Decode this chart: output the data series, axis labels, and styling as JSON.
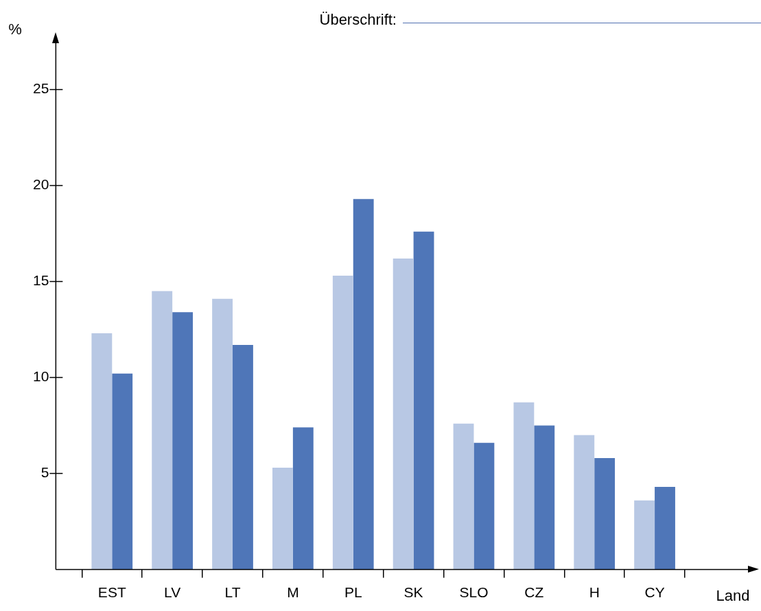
{
  "chart_data": {
    "type": "bar",
    "title": "Überschrift:",
    "xlabel": "Land",
    "ylabel": "%",
    "categories": [
      "EST",
      "LV",
      "LT",
      "M",
      "PL",
      "SK",
      "SLO",
      "CZ",
      "H",
      "CY"
    ],
    "series": [
      {
        "color": "#b8c8e4",
        "values": [
          12.3,
          14.5,
          14.1,
          5.3,
          15.3,
          16.2,
          7.6,
          8.7,
          7.0,
          3.6
        ]
      },
      {
        "color": "#4f76b8",
        "values": [
          10.2,
          13.4,
          11.7,
          7.4,
          19.3,
          17.6,
          6.6,
          7.5,
          5.8,
          4.3
        ]
      }
    ],
    "ylim": [
      0,
      27.5
    ],
    "yticks": [
      5,
      10,
      15,
      20,
      25
    ]
  }
}
